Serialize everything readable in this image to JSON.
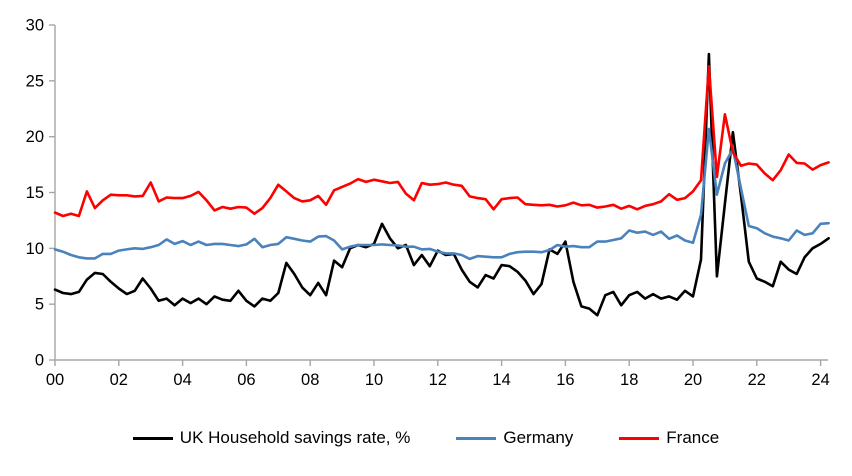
{
  "chart_data": {
    "type": "line",
    "title": "",
    "xlabel": "",
    "ylabel": "",
    "x_axis": {
      "start": "2000-Q1",
      "frequency": "quarterly",
      "tick_labels": [
        "00",
        "02",
        "04",
        "06",
        "08",
        "10",
        "12",
        "14",
        "16",
        "18",
        "20",
        "22",
        "24"
      ]
    },
    "y_axis": {
      "min": 0,
      "max": 30,
      "tick_labels": [
        "0",
        "5",
        "10",
        "15",
        "20",
        "25",
        "30"
      ],
      "ticks": [
        0,
        5,
        10,
        15,
        20,
        25,
        30
      ]
    },
    "grid": "off",
    "legend_position": "bottom",
    "axis_color": "#A6A6A6",
    "text_color": "#000000",
    "annotations": {
      "uk_peak_2020": 27.4,
      "france_peak_2020": 26.3,
      "germany_peak_2020": 20.7
    },
    "series": [
      {
        "name": "UK Household savings rate, %",
        "color": "#000000",
        "values": [
          6.3,
          6.0,
          5.9,
          6.1,
          7.2,
          7.8,
          7.7,
          7.0,
          6.4,
          5.9,
          6.2,
          7.3,
          6.4,
          5.3,
          5.5,
          4.9,
          5.5,
          5.1,
          5.5,
          5.0,
          5.7,
          5.4,
          5.3,
          6.2,
          5.3,
          4.8,
          5.5,
          5.3,
          6.0,
          8.7,
          7.7,
          6.5,
          5.8,
          6.9,
          5.8,
          8.9,
          8.3,
          10.0,
          10.3,
          10.1,
          10.4,
          12.2,
          10.9,
          10.0,
          10.3,
          8.5,
          9.4,
          8.4,
          9.8,
          9.4,
          9.5,
          8.1,
          7.0,
          6.5,
          7.6,
          7.3,
          8.5,
          8.4,
          7.9,
          7.1,
          5.9,
          6.8,
          9.9,
          9.5,
          10.6,
          7.0,
          4.8,
          4.6,
          4.0,
          5.8,
          6.1,
          4.9,
          5.8,
          6.1,
          5.5,
          5.9,
          5.5,
          5.7,
          5.4,
          6.2,
          5.7,
          9.0,
          27.4,
          7.5,
          14.0,
          20.4,
          14.8,
          8.8,
          7.3,
          7.0,
          6.6,
          8.8,
          8.1,
          7.7,
          9.2,
          10.0,
          10.4,
          10.9
        ]
      },
      {
        "name": "Germany",
        "color": "#4A82BC",
        "values": [
          9.9,
          9.7,
          9.4,
          9.2,
          9.1,
          9.1,
          9.5,
          9.5,
          9.8,
          9.9,
          10.0,
          9.95,
          10.1,
          10.3,
          10.8,
          10.4,
          10.65,
          10.3,
          10.6,
          10.3,
          10.4,
          10.4,
          10.3,
          10.2,
          10.35,
          10.85,
          10.1,
          10.3,
          10.4,
          11.0,
          10.85,
          10.7,
          10.6,
          11.05,
          11.1,
          10.7,
          9.9,
          10.15,
          10.3,
          10.3,
          10.3,
          10.35,
          10.3,
          10.25,
          10.15,
          10.15,
          9.9,
          9.95,
          9.7,
          9.55,
          9.55,
          9.4,
          9.05,
          9.3,
          9.25,
          9.2,
          9.2,
          9.5,
          9.65,
          9.7,
          9.7,
          9.65,
          9.85,
          10.3,
          10.15,
          10.2,
          10.1,
          10.1,
          10.6,
          10.6,
          10.75,
          10.9,
          11.6,
          11.4,
          11.5,
          11.2,
          11.5,
          10.85,
          11.15,
          10.7,
          10.5,
          13.0,
          20.7,
          14.8,
          17.6,
          18.9,
          15.4,
          12.0,
          11.8,
          11.35,
          11.05,
          10.9,
          10.7,
          11.6,
          11.2,
          11.35,
          12.2,
          12.25
        ]
      },
      {
        "name": "France",
        "color": "#FF0000",
        "values": [
          13.2,
          12.9,
          13.1,
          12.9,
          15.1,
          13.6,
          14.3,
          14.8,
          14.75,
          14.75,
          14.65,
          14.7,
          15.9,
          14.2,
          14.55,
          14.5,
          14.5,
          14.7,
          15.05,
          14.3,
          13.4,
          13.7,
          13.55,
          13.7,
          13.65,
          13.1,
          13.6,
          14.5,
          15.7,
          15.1,
          14.5,
          14.2,
          14.3,
          14.7,
          13.9,
          15.2,
          15.5,
          15.8,
          16.2,
          15.95,
          16.15,
          16.0,
          15.85,
          15.95,
          14.9,
          14.3,
          15.85,
          15.7,
          15.75,
          15.9,
          15.7,
          15.6,
          14.65,
          14.5,
          14.4,
          13.5,
          14.4,
          14.5,
          14.55,
          13.95,
          13.9,
          13.85,
          13.9,
          13.75,
          13.85,
          14.1,
          13.85,
          13.9,
          13.65,
          13.75,
          13.9,
          13.55,
          13.8,
          13.5,
          13.8,
          13.95,
          14.2,
          14.85,
          14.35,
          14.5,
          15.1,
          16.1,
          26.3,
          16.4,
          22.0,
          18.6,
          17.4,
          17.6,
          17.5,
          16.7,
          16.1,
          17.0,
          18.4,
          17.65,
          17.6,
          17.05,
          17.45,
          17.7
        ]
      }
    ]
  }
}
